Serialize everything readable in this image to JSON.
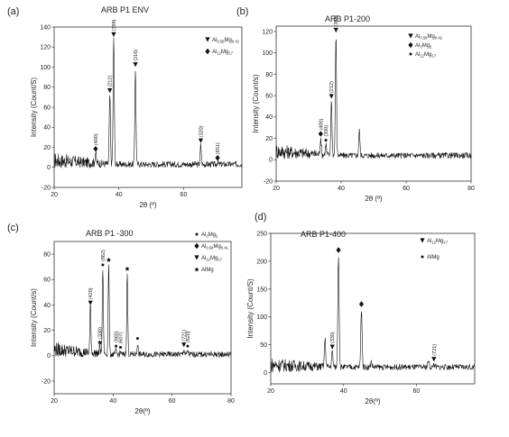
{
  "chart_data": [
    {
      "type": "line",
      "panel_label": "(a)",
      "title": "ARB P1 ENV",
      "xlabel": "2θ (º)",
      "ylabel": "Intensity (Count/S)",
      "xlim": [
        20,
        78
      ],
      "ylim": [
        -20,
        140
      ],
      "xticks": [
        20,
        40,
        60
      ],
      "yticks": [
        -20,
        0,
        20,
        40,
        60,
        80,
        100,
        120,
        140
      ],
      "legend": [
        {
          "marker": "down-triangle",
          "label": "Al0.58Mg0.42"
        },
        {
          "marker": "diamond",
          "label": "Al12Mg17"
        }
      ],
      "baseline": 3,
      "peaks": [
        {
          "x": 32.8,
          "y": 14,
          "label": "(400)",
          "marker": "diamond"
        },
        {
          "x": 37.2,
          "y": 72,
          "label": "(212)",
          "marker": "down-triangle"
        },
        {
          "x": 38.4,
          "y": 128,
          "label": "(398)",
          "marker": "down-triangle"
        },
        {
          "x": 45.1,
          "y": 98,
          "label": "(216)",
          "marker": "down-triangle"
        },
        {
          "x": 65.3,
          "y": 22,
          "label": "(320)",
          "marker": "down-triangle"
        },
        {
          "x": 70.5,
          "y": 5,
          "label": "(651)",
          "marker": "diamond"
        }
      ]
    },
    {
      "type": "line",
      "panel_label": "(b)",
      "title": "ARB P1-200",
      "xlabel": "2θ (º)",
      "ylabel": "Intensity (Count/s)",
      "xlim": [
        20,
        80
      ],
      "ylim": [
        -20,
        125
      ],
      "xticks": [
        20,
        40,
        60,
        80
      ],
      "yticks": [
        -20,
        0,
        20,
        40,
        60,
        80,
        100,
        120
      ],
      "legend": [
        {
          "marker": "down-triangle",
          "label": "Al0.58Mg0.42"
        },
        {
          "marker": "diamond",
          "label": "Al3Mg2"
        },
        {
          "marker": "dot",
          "label": "Al12Mg17"
        }
      ],
      "baseline": 4,
      "peaks": [
        {
          "x": 33.7,
          "y": 20,
          "label": "(400)",
          "marker": "diamond"
        },
        {
          "x": 35.3,
          "y": 14,
          "label": "(350)",
          "marker": "dot"
        },
        {
          "x": 37.0,
          "y": 55,
          "label": "(212)",
          "marker": "down-triangle"
        },
        {
          "x": 38.4,
          "y": 117,
          "label": "(398)",
          "marker": "down-triangle"
        },
        {
          "x": 45.6,
          "y": 27,
          "label": "",
          "marker": ""
        }
      ]
    },
    {
      "type": "line",
      "panel_label": "(c)",
      "title": "ARB P1 -300",
      "xlabel": "2θ(º)",
      "ylabel": "Intensity (Count/s)",
      "xlim": [
        20,
        80
      ],
      "ylim": [
        -30,
        90
      ],
      "xticks": [
        20,
        40,
        60,
        80
      ],
      "yticks": [
        -20,
        0,
        20,
        40,
        60,
        80
      ],
      "legend": [
        {
          "marker": "dot",
          "label": "Al3Mg2"
        },
        {
          "marker": "diamond",
          "label": "Al0.58Mg0.4L"
        },
        {
          "marker": "down-triangle",
          "label": "Al12Mg17"
        },
        {
          "marker": "star",
          "label": "AlMg"
        }
      ],
      "baseline": 1,
      "peaks": [
        {
          "x": 32.3,
          "y": 38,
          "label": "(420)",
          "marker": "down-triangle"
        },
        {
          "x": 35.5,
          "y": 7,
          "label": "(330)",
          "marker": "star"
        },
        {
          "x": 36.5,
          "y": 68,
          "label": "(862)",
          "marker": "dot"
        },
        {
          "x": 38.5,
          "y": 72,
          "label": "",
          "marker": "star"
        },
        {
          "x": 41.0,
          "y": 4,
          "label": "(665)",
          "marker": "dot"
        },
        {
          "x": 42.5,
          "y": 3,
          "label": "(607)",
          "marker": "dot"
        },
        {
          "x": 44.8,
          "y": 65,
          "label": "",
          "marker": "star"
        },
        {
          "x": 48.3,
          "y": 10,
          "label": "",
          "marker": "dot"
        },
        {
          "x": 64.0,
          "y": 5,
          "label": "(721)",
          "marker": "down-triangle"
        },
        {
          "x": 65.3,
          "y": 4,
          "label": "(620)",
          "marker": "dot"
        }
      ]
    },
    {
      "type": "line",
      "panel_label": "(d)",
      "title": "ARB P1-400",
      "xlabel": "2θ(º)",
      "ylabel": "Intensity (Count/S)",
      "xlim": [
        20,
        76
      ],
      "ylim": [
        -20,
        250
      ],
      "xticks": [
        20,
        40,
        60
      ],
      "yticks": [
        0,
        50,
        100,
        150,
        200,
        250
      ],
      "legend": [
        {
          "marker": "down-triangle",
          "label": "Al12Mg17"
        },
        {
          "marker": "dot",
          "label": "AlMg"
        }
      ],
      "baseline": 10,
      "peaks": [
        {
          "x": 34.9,
          "y": 60,
          "label": "",
          "marker": ""
        },
        {
          "x": 36.9,
          "y": 38,
          "label": "(330)",
          "marker": "down-triangle"
        },
        {
          "x": 38.6,
          "y": 212,
          "label": "",
          "marker": "diamond"
        },
        {
          "x": 44.9,
          "y": 115,
          "label": "",
          "marker": "diamond"
        },
        {
          "x": 47.6,
          "y": 20,
          "label": "",
          "marker": ""
        },
        {
          "x": 63.3,
          "y": 22,
          "label": "",
          "marker": ""
        },
        {
          "x": 64.8,
          "y": 16,
          "label": "(721)",
          "marker": "down-triangle"
        }
      ]
    }
  ]
}
